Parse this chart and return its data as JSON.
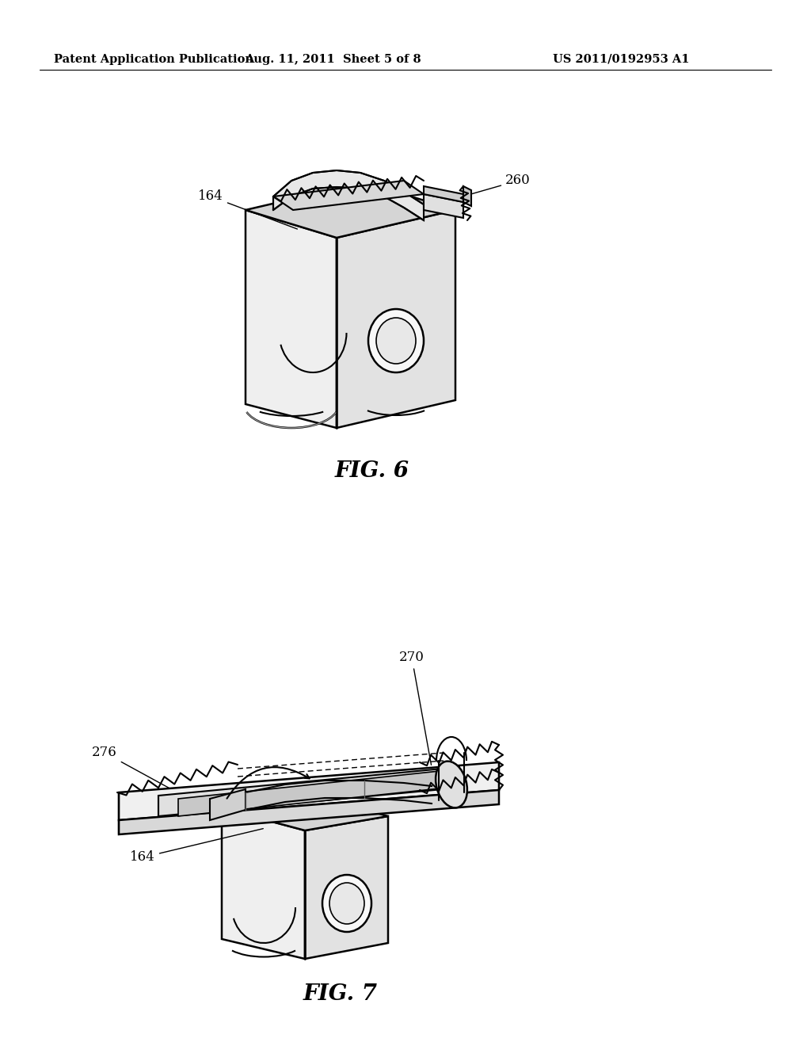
{
  "background_color": "#ffffff",
  "header_left": "Patent Application Publication",
  "header_center": "Aug. 11, 2011  Sheet 5 of 8",
  "header_right": "US 2011/0192953 A1",
  "header_fontsize": 10.5,
  "fig6_label": "FIG. 6",
  "fig7_label": "FIG. 7",
  "label_fontsize": 20,
  "annotation_fontsize": 12
}
